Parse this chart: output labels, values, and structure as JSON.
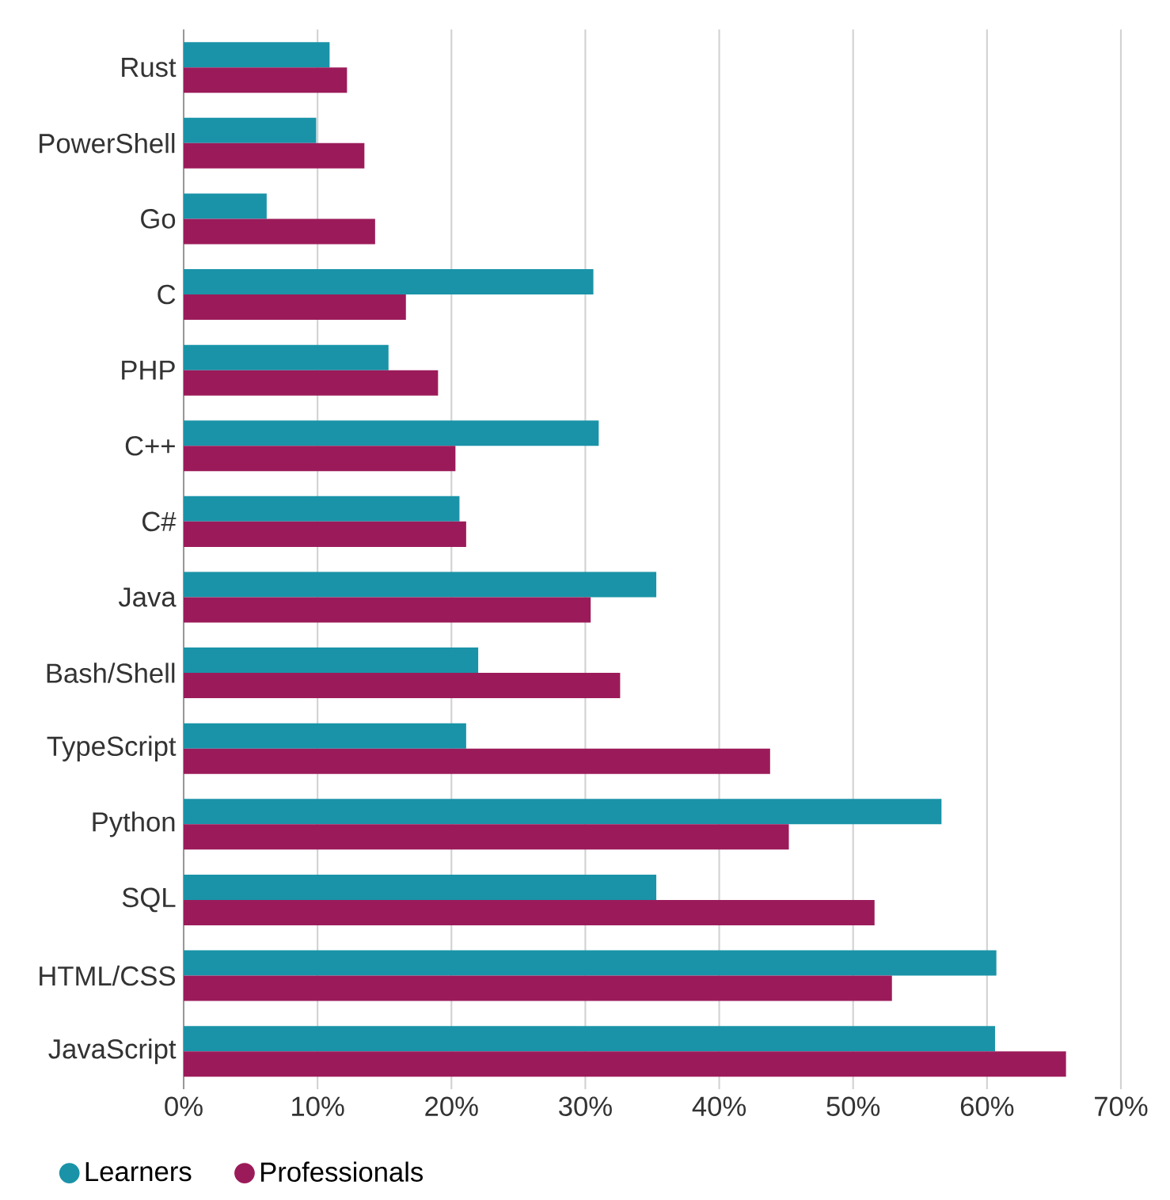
{
  "chart_data": {
    "type": "bar",
    "orientation": "horizontal",
    "categories": [
      "Rust",
      "PowerShell",
      "Go",
      "C",
      "PHP",
      "C++",
      "C#",
      "Java",
      "Bash/Shell",
      "TypeScript",
      "Python",
      "SQL",
      "HTML/CSS",
      "JavaScript"
    ],
    "series": [
      {
        "name": "Learners",
        "color": "#1a93a8",
        "values": [
          10.9,
          9.9,
          6.2,
          30.6,
          15.3,
          31.0,
          20.6,
          35.3,
          22.0,
          21.1,
          56.6,
          35.3,
          60.7,
          60.6
        ]
      },
      {
        "name": "Professionals",
        "color": "#9b1b5a",
        "values": [
          12.2,
          13.5,
          14.3,
          16.6,
          19.0,
          20.3,
          21.1,
          30.4,
          32.6,
          43.8,
          45.2,
          51.6,
          52.9,
          65.9
        ]
      }
    ],
    "xlim": [
      0,
      70
    ],
    "xticks": [
      {
        "value": 0,
        "label": "0%"
      },
      {
        "value": 10,
        "label": "10%"
      },
      {
        "value": 20,
        "label": "20%"
      },
      {
        "value": 30,
        "label": "30%"
      },
      {
        "value": 40,
        "label": "40%"
      },
      {
        "value": 50,
        "label": "50%"
      },
      {
        "value": 60,
        "label": "60%"
      },
      {
        "value": 70,
        "label": "70%"
      }
    ],
    "grid": "x",
    "legend": "bottom left"
  }
}
